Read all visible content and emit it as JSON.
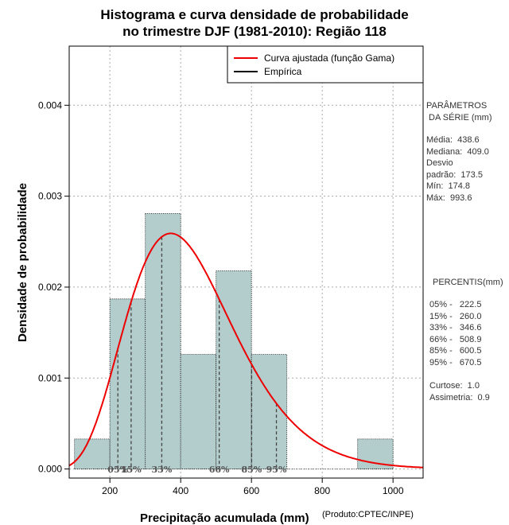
{
  "chart_data": {
    "type": "histogram",
    "title": [
      "Histograma e curva densidade de probabilidade",
      "no trimestre DJF (1981-2010): Região 118"
    ],
    "xlabel": "Precipitação acumulada (mm)",
    "ylabel": "Densidade de probabilidade",
    "credit": "(Produto:CPTEC/INPE)",
    "xlim": [
      85,
      1085
    ],
    "ylim": [
      -0.0001,
      0.00465
    ],
    "xticks": [
      200,
      400,
      600,
      800,
      1000
    ],
    "yticks": [
      0.0,
      0.001,
      0.002,
      0.003,
      0.004
    ],
    "ytick_labels": [
      "0.000",
      "0.001",
      "0.002",
      "0.003",
      "0.004"
    ],
    "bins": [
      {
        "start": 100,
        "end": 200,
        "density": 0.00033
      },
      {
        "start": 200,
        "end": 300,
        "density": 0.00187
      },
      {
        "start": 300,
        "end": 400,
        "density": 0.00281
      },
      {
        "start": 400,
        "end": 500,
        "density": 0.00126
      },
      {
        "start": 500,
        "end": 600,
        "density": 0.00218
      },
      {
        "start": 600,
        "end": 700,
        "density": 0.00126
      },
      {
        "start": 700,
        "end": 800,
        "density": 0.0
      },
      {
        "start": 800,
        "end": 900,
        "density": 0.0
      },
      {
        "start": 900,
        "end": 1000,
        "density": 0.00033
      }
    ],
    "gamma_fit": {
      "shape": 7.0,
      "scale": 62.0
    },
    "percentile_lines": [
      {
        "label": "05%",
        "x": 222.5
      },
      {
        "label": "15%",
        "x": 260.0
      },
      {
        "label": "33%",
        "x": 346.6
      },
      {
        "label": "66%",
        "x": 508.9
      },
      {
        "label": "85%",
        "x": 600.5
      },
      {
        "label": "95%",
        "x": 670.5
      }
    ],
    "legend": [
      {
        "label": "Curva ajustada (função Gama)",
        "color": "#ee0000"
      },
      {
        "label": "Empírica",
        "color": "#000000"
      }
    ],
    "colors": {
      "bar": "#b3cccc",
      "curve": "#ee0000",
      "grid": "#aaaaaa"
    }
  },
  "side_panel": {
    "params_title": "PARÂMETROS\n DA SÉRIE (mm)",
    "params": "Média:  438.6\nMediana:  409.0\nDesvio\npadrão:  173.5\nMín:  174.8\nMáx:  993.6",
    "percentis_title": "PERCENTIS(mm)",
    "percentis": "05% -   222.5\n15% -   260.0\n33% -   346.6\n66% -   508.9\n85% -   600.5\n95% -   670.5",
    "stats": "Curtose:  1.0\nAssimetria:  0.9"
  }
}
